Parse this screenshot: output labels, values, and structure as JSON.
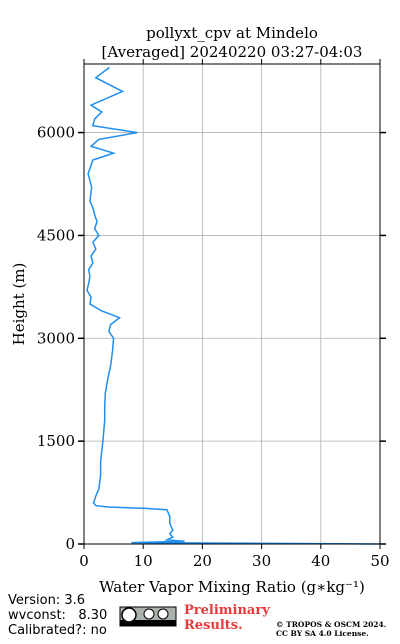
{
  "chart_data": {
    "type": "line",
    "title": "pollyxt_cpv at Mindelo",
    "subtitle": "[Averaged] 20240220 03:27-04:03",
    "x_label": "Water Vapor Mixing Ratio (g∗kg⁻¹)",
    "y_label": "Height (m)",
    "y": [
      0,
      20,
      40,
      60,
      100,
      150,
      200,
      300,
      400,
      500,
      520,
      540,
      560,
      600,
      650,
      700,
      800,
      1000,
      1200,
      1500,
      1800,
      2000,
      2200,
      2400,
      2600,
      2800,
      3000,
      3100,
      3200,
      3300,
      3400,
      3500,
      3600,
      3700,
      3800,
      3900,
      4000,
      4100,
      4200,
      4300,
      4400,
      4500,
      4600,
      4700,
      4800,
      4900,
      5000,
      5200,
      5400,
      5600,
      5700,
      5800,
      5900,
      6000,
      6100,
      6200,
      6300,
      6400,
      6600,
      6800,
      6950
    ],
    "series": [
      {
        "color": "#1e8ff0",
        "values": [
          50,
          8,
          17,
          14,
          15,
          14.5,
          15,
          14.5,
          14.5,
          14,
          10,
          4,
          2,
          1.6,
          1.8,
          2,
          2.5,
          2.8,
          2.8,
          3.2,
          3.5,
          3.5,
          3.6,
          4,
          4.5,
          4.8,
          5,
          4.2,
          4.5,
          6,
          3,
          1,
          1.2,
          0.5,
          0.8,
          1,
          0.8,
          1.5,
          1.2,
          2,
          1.5,
          2.5,
          1.8,
          2.2,
          1.8,
          1.5,
          1,
          1.3,
          0.7,
          1.5,
          5,
          1.2,
          2.5,
          9,
          1.5,
          1.8,
          3,
          1.2,
          6.5,
          2,
          4.3
        ]
      }
    ],
    "xlim": [
      0,
      50
    ],
    "xticks": [
      0,
      10,
      20,
      30,
      40,
      50
    ],
    "ylim": [
      0,
      7000
    ],
    "yticks": [
      0,
      1500,
      3000,
      4500,
      6000
    ],
    "grid": true
  },
  "footer": {
    "version": "Version: 3.6",
    "wvconst": "wvconst:   8.30",
    "calibrated": "Calibrated?: no",
    "preliminary": [
      "Preliminary",
      "Results."
    ],
    "copyright": [
      "© TROPOS & OSCM 2024.",
      "CC BY SA 4.0 License."
    ]
  }
}
